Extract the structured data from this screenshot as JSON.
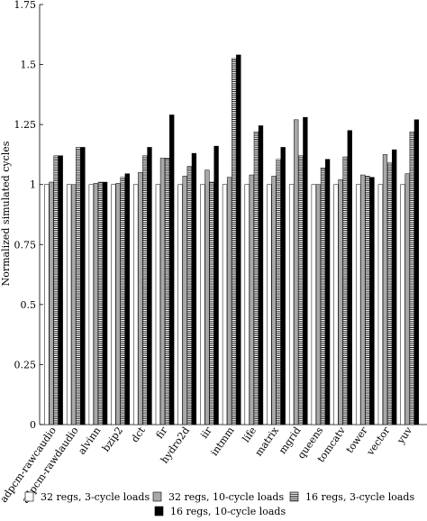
{
  "chart_data": {
    "type": "bar",
    "ylabel": "Normalized simulated cycles",
    "xlabel": "",
    "title": "",
    "ylim": [
      0,
      1.75
    ],
    "yticks": [
      0,
      0.25,
      0.5,
      0.75,
      1,
      1.25,
      1.5,
      1.75
    ],
    "ytick_labels": [
      "0",
      "0.25",
      "0.5",
      "0.75",
      "1",
      "1.25",
      "1.5",
      "1.75"
    ],
    "legend_position": "bottom",
    "categories": [
      "adpcm-rawcaudio",
      "adpcm-rawdaudio",
      "alvinn",
      "bzip2",
      "dct",
      "fir",
      "hydro2d",
      "iir",
      "intmm",
      "life",
      "matrix",
      "mgrid",
      "queens",
      "tomcatv",
      "tower",
      "vector",
      "yuv"
    ],
    "series": [
      {
        "name": "32 regs, 3-cycle loads",
        "fill": "white",
        "values": [
          1.0,
          1.0,
          1.0,
          1.0,
          1.0,
          1.0,
          1.0,
          1.0,
          1.0,
          1.0,
          1.0,
          1.0,
          1.0,
          1.0,
          1.0,
          1.0,
          1.0
        ]
      },
      {
        "name": "32 regs, 10-cycle loads",
        "fill": "gray",
        "values": [
          1.01,
          1.0,
          1.005,
          1.005,
          1.05,
          1.11,
          1.035,
          1.06,
          1.03,
          1.04,
          1.035,
          1.27,
          1.0,
          1.02,
          1.04,
          1.125,
          1.045
        ]
      },
      {
        "name": "16 regs, 3-cycle loads",
        "fill": "striped",
        "values": [
          1.12,
          1.155,
          1.01,
          1.03,
          1.12,
          1.11,
          1.075,
          1.01,
          1.525,
          1.22,
          1.105,
          1.12,
          1.07,
          1.115,
          1.035,
          1.09,
          1.22
        ]
      },
      {
        "name": "16 regs, 10-cycle loads",
        "fill": "black",
        "values": [
          1.12,
          1.155,
          1.01,
          1.045,
          1.155,
          1.29,
          1.13,
          1.16,
          1.54,
          1.245,
          1.155,
          1.28,
          1.105,
          1.225,
          1.03,
          1.145,
          1.27
        ]
      }
    ],
    "colors": {
      "gray": "#a8a8a8",
      "black": "#000000",
      "white": "#ffffff",
      "stroke": "#000000"
    }
  }
}
